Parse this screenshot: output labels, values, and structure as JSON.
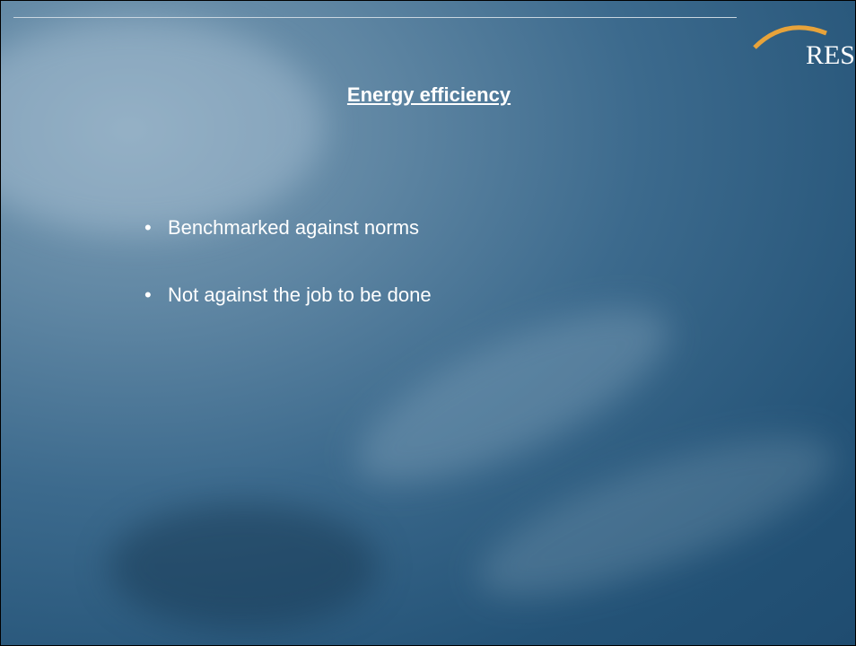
{
  "logo": "RES",
  "title": "Energy efficiency",
  "bullets": [
    "Benchmarked against norms",
    "Not against the job to be done"
  ]
}
